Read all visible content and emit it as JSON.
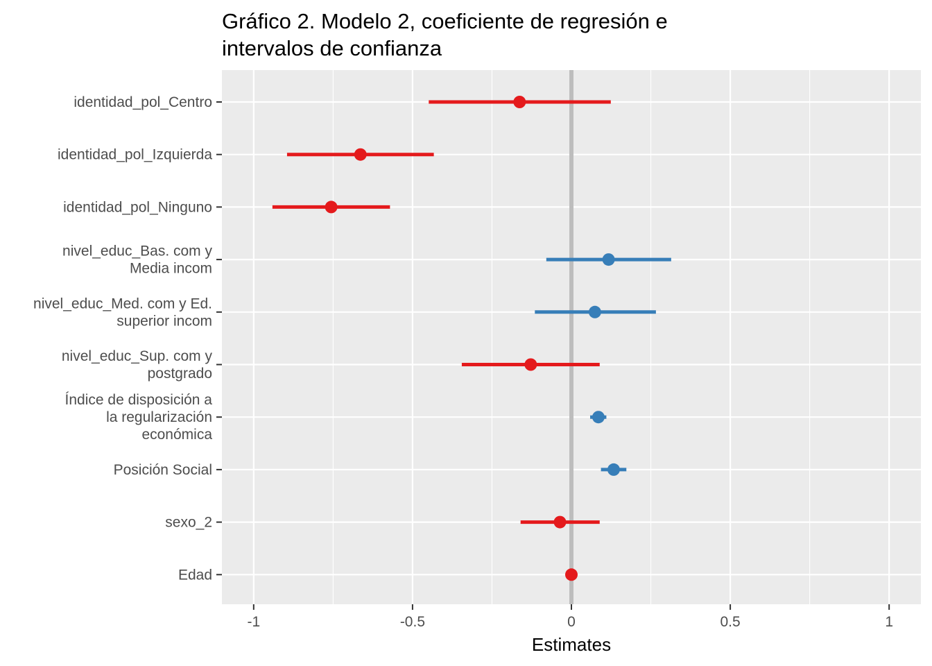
{
  "chart_data": {
    "type": "dot-whisker",
    "title_lines": [
      "Gráfico 2. Modelo 2, coeficiente de regresión e",
      "intervalos de confianza"
    ],
    "xlabel": "Estimates",
    "xlim": [
      -1.1,
      1.1
    ],
    "x_ticks": [
      -1,
      -0.5,
      0,
      0.5,
      1
    ],
    "x_tick_labels": [
      "-1",
      "-0.5",
      "0",
      "0.5",
      "1"
    ],
    "reference_line": 0,
    "colors": {
      "negative": "#e41a1c",
      "positive": "#377eb8",
      "reference": "#bdbdbd",
      "panel": "#ebebeb",
      "grid": "#ffffff"
    },
    "terms": [
      {
        "label_lines": [
          "identidad_pol_Centro"
        ],
        "estimate": -0.163,
        "low": -0.449,
        "high": 0.124
      },
      {
        "label_lines": [
          "identidad_pol_Izquierda"
        ],
        "estimate": -0.664,
        "low": -0.895,
        "high": -0.433
      },
      {
        "label_lines": [
          "identidad_pol_Ninguno"
        ],
        "estimate": -0.756,
        "low": -0.941,
        "high": -0.571
      },
      {
        "label_lines": [
          "nivel_educ_Bas. com y",
          "Media incom"
        ],
        "estimate": 0.117,
        "low": -0.079,
        "high": 0.314
      },
      {
        "label_lines": [
          "nivel_educ_Med. com y Ed.",
          "superior incom"
        ],
        "estimate": 0.074,
        "low": -0.115,
        "high": 0.266
      },
      {
        "label_lines": [
          "nivel_educ_Sup. com y",
          "postgrado"
        ],
        "estimate": -0.128,
        "low": -0.345,
        "high": 0.089
      },
      {
        "label_lines": [
          "Índice de disposición a",
          "la regularización",
          "económica"
        ],
        "estimate": 0.085,
        "low": 0.059,
        "high": 0.11
      },
      {
        "label_lines": [
          "Posición Social"
        ],
        "estimate": 0.133,
        "low": 0.093,
        "high": 0.173
      },
      {
        "label_lines": [
          "sexo_2"
        ],
        "estimate": -0.036,
        "low": -0.16,
        "high": 0.089
      },
      {
        "label_lines": [
          "Edad"
        ],
        "estimate": 0.0,
        "low": -0.001,
        "high": 0.001
      }
    ]
  }
}
